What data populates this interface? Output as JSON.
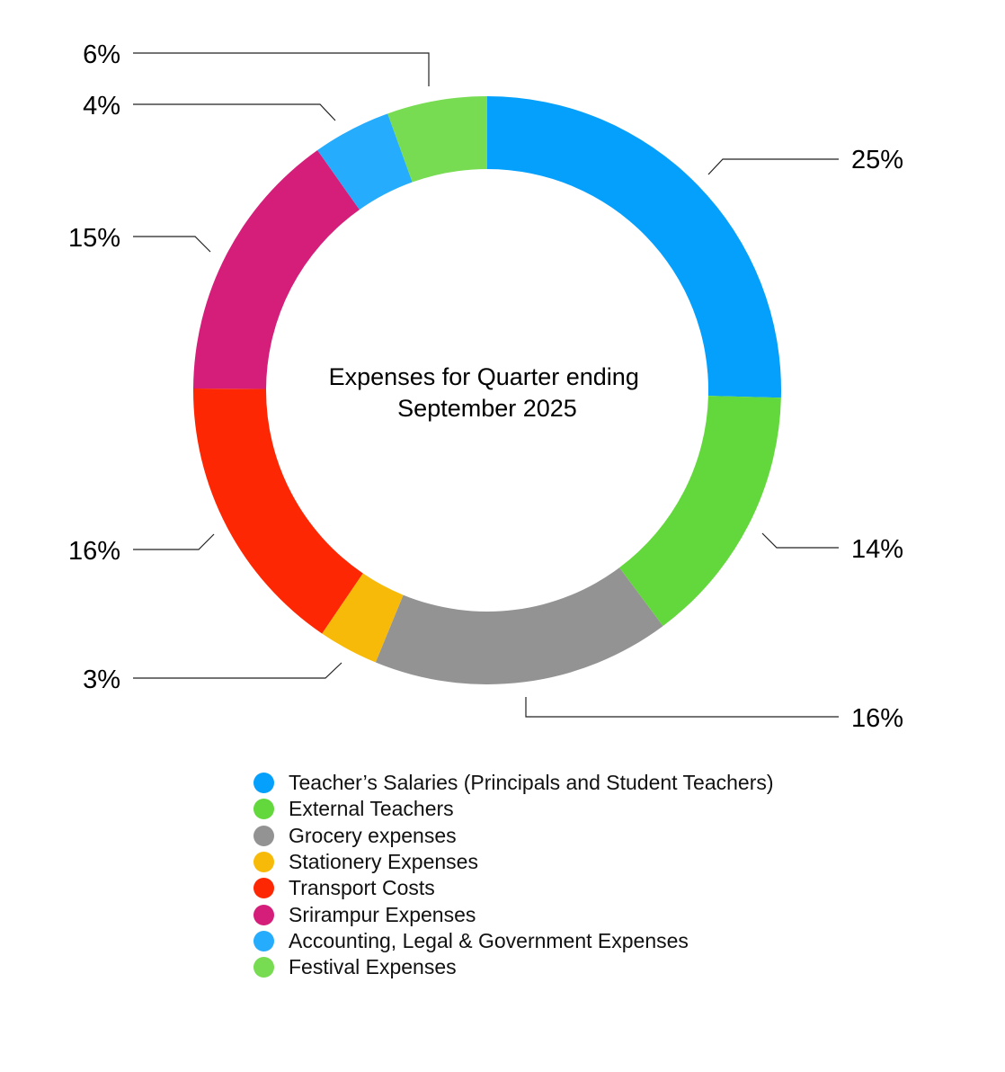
{
  "chart_data": {
    "type": "pie",
    "donut": true,
    "title": "Expenses for Quarter ending September 2025",
    "title_lines": [
      "Expenses for Quarter ending",
      "September 2025"
    ],
    "categories": [
      "Teacher’s Salaries (Principals and Student Teachers)",
      "External Teachers",
      "Grocery expenses",
      "Stationery Expenses",
      "Transport Costs",
      "Srirampur Expenses",
      "Accounting, Legal & Government Expenses",
      "Festival Expenses"
    ],
    "values": [
      25.4,
      14.4,
      16.4,
      3.3,
      15.6,
      15.1,
      4.3,
      5.5
    ],
    "labels": [
      "25%",
      "14%",
      "16%",
      "3%",
      "16%",
      "15%",
      "4%",
      "6%"
    ],
    "colors": [
      "#05a0fb",
      "#63d83c",
      "#939393",
      "#f8ba08",
      "#fe2703",
      "#d41e79",
      "#25acfd",
      "#77dc51"
    ],
    "legend_position": "bottom",
    "start_angle": "12 o'clock",
    "direction": "clockwise"
  }
}
